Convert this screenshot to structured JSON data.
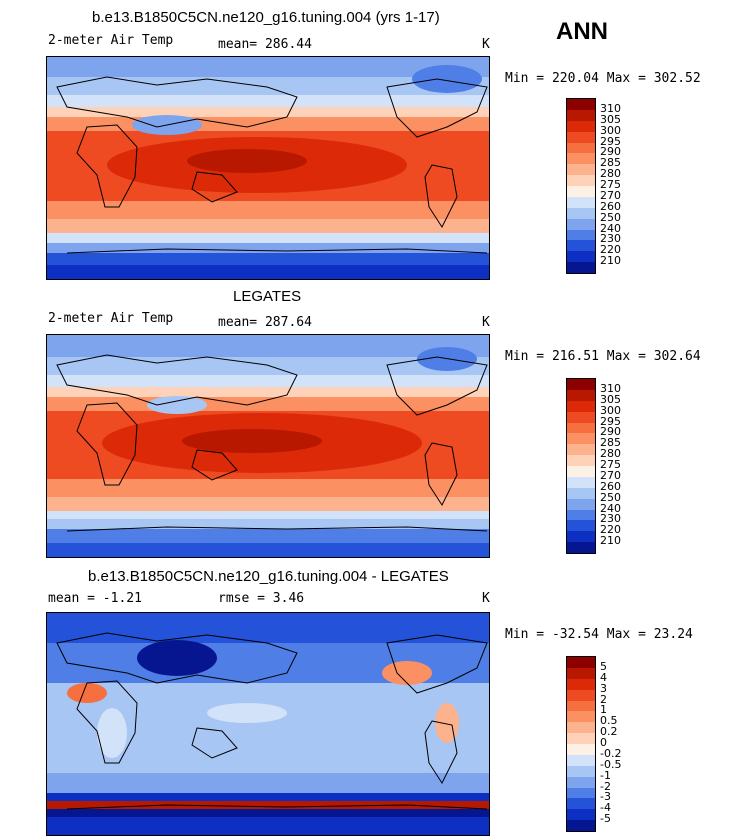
{
  "season": "ANN",
  "panels": [
    {
      "title": "b.e13.B1850C5CN.ne120_g16.tuning.004 (yrs 1-17)",
      "var_label": "2-meter Air Temp",
      "stat1_label": "mean=",
      "stat1_value": "286.44",
      "stat2_label": "",
      "stat2_value": "",
      "units": "K",
      "min_label": "Min =",
      "min_value": "220.04",
      "max_label": "Max =",
      "max_value": "302.52",
      "colorbar_labels": [
        "310",
        "305",
        "300",
        "295",
        "290",
        "285",
        "280",
        "275",
        "270",
        "260",
        "250",
        "240",
        "230",
        "220",
        "210"
      ],
      "colorbar_colors": [
        "#8c0000",
        "#b81800",
        "#dc2a08",
        "#ee4b22",
        "#f6703f",
        "#fb9063",
        "#fdb28e",
        "#fed2b8",
        "#fdf0e4",
        "#d2e2f8",
        "#a8c6f4",
        "#7ea4ee",
        "#4f7fe6",
        "#2452d9",
        "#0d2fc2",
        "#061690"
      ]
    },
    {
      "title": "LEGATES",
      "var_label": "2-meter Air Temp",
      "stat1_label": "mean=",
      "stat1_value": "287.64",
      "stat2_label": "",
      "stat2_value": "",
      "units": "K",
      "min_label": "Min =",
      "min_value": "216.51",
      "max_label": "Max =",
      "max_value": "302.64",
      "colorbar_labels": [
        "310",
        "305",
        "300",
        "295",
        "290",
        "285",
        "280",
        "275",
        "270",
        "260",
        "250",
        "240",
        "230",
        "220",
        "210"
      ],
      "colorbar_colors": [
        "#8c0000",
        "#b81800",
        "#dc2a08",
        "#ee4b22",
        "#f6703f",
        "#fb9063",
        "#fdb28e",
        "#fed2b8",
        "#fdf0e4",
        "#d2e2f8",
        "#a8c6f4",
        "#7ea4ee",
        "#4f7fe6",
        "#2452d9",
        "#0d2fc2",
        "#061690"
      ]
    },
    {
      "title": "b.e13.B1850C5CN.ne120_g16.tuning.004 - LEGATES",
      "var_label": "",
      "stat1_label": "mean =",
      "stat1_value": "-1.21",
      "stat2_label": "rmse =",
      "stat2_value": "3.46",
      "units": "K",
      "min_label": "Min =",
      "min_value": "-32.54",
      "max_label": "Max =",
      "max_value": "23.24",
      "colorbar_labels": [
        "5",
        "4",
        "3",
        "2",
        "1",
        "0.5",
        "0.2",
        "0",
        "-0.2",
        "-0.5",
        "-1",
        "-2",
        "-3",
        "-4",
        "-5"
      ],
      "colorbar_colors": [
        "#8c0000",
        "#b81800",
        "#dc2a08",
        "#ee4b22",
        "#f6703f",
        "#fb9063",
        "#fdb28e",
        "#fed2b8",
        "#fdf0e4",
        "#d2e2f8",
        "#a8c6f4",
        "#7ea4ee",
        "#4f7fe6",
        "#2452d9",
        "#0d2fc2",
        "#061690"
      ]
    }
  ]
}
